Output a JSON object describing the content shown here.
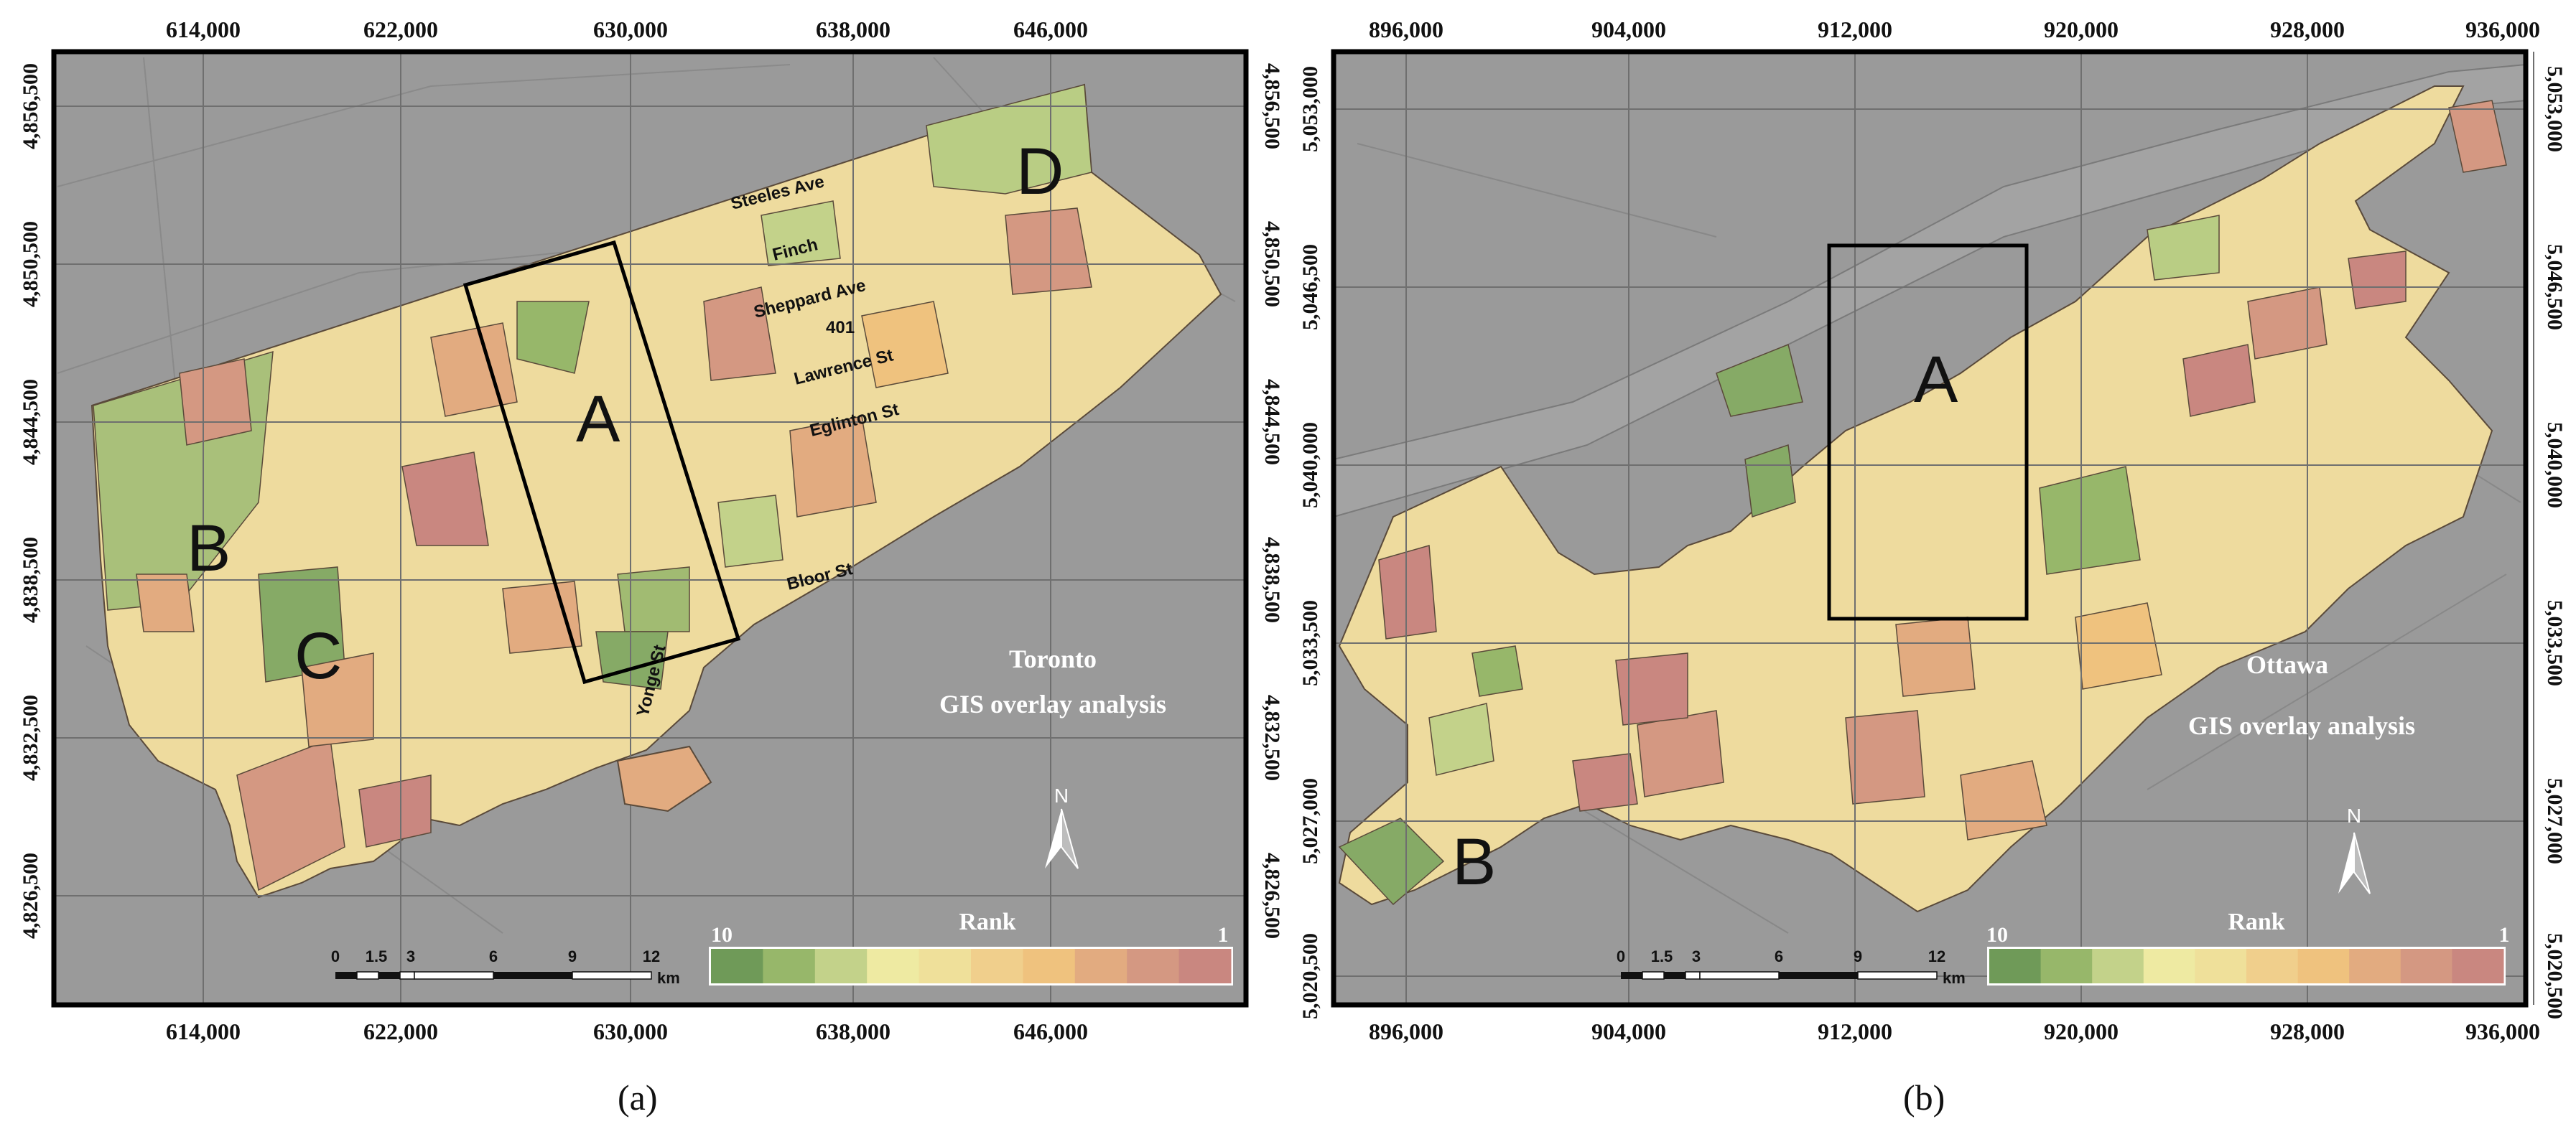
{
  "panels": {
    "a": {
      "caption": "(a)",
      "title_line1": "Toronto",
      "title_line2": "GIS overlay analysis",
      "x_ticks": [
        "614,000",
        "622,000",
        "630,000",
        "638,000",
        "646,000"
      ],
      "y_ticks": [
        "4,856,500",
        "4,850,500",
        "4,844,500",
        "4,838,500",
        "4,832,500",
        "4,826,500"
      ],
      "zones": [
        "A",
        "B",
        "C",
        "D"
      ],
      "streets": [
        "Steeles Ave",
        "Finch",
        "Sheppard Ave",
        "401",
        "Lawrence St",
        "Eglinton St",
        "Bloor St",
        "Yonge St"
      ],
      "legend": {
        "title": "Rank",
        "high": "10",
        "low": "1"
      },
      "scale": {
        "labels": [
          "0",
          "1.5",
          "3",
          "6",
          "9",
          "12"
        ],
        "unit": "km"
      },
      "north": "N"
    },
    "b": {
      "caption": "(b)",
      "title_line1": "Ottawa",
      "title_line2": "GIS overlay analysis",
      "x_ticks": [
        "896,000",
        "904,000",
        "912,000",
        "920,000",
        "928,000",
        "936,000"
      ],
      "y_ticks": [
        "5,053,000",
        "5,046,500",
        "5,040,000",
        "5,033,500",
        "5,027,000",
        "5,020,500"
      ],
      "zones": [
        "A",
        "B"
      ],
      "legend": {
        "title": "Rank",
        "high": "10",
        "low": "1"
      },
      "scale": {
        "labels": [
          "0",
          "1.5",
          "3",
          "6",
          "9",
          "12"
        ],
        "unit": "km"
      },
      "north": "N"
    }
  },
  "colors": {
    "background_map": "#9a9a9a",
    "water": "#9e9e9e",
    "rank_ramp": [
      "#6f9a58",
      "#97b76a",
      "#c3d28a",
      "#eeeaa2",
      "#efe09a",
      "#f0cf8c",
      "#efc27e",
      "#e2ab80",
      "#d49882",
      "#c98780"
    ]
  }
}
